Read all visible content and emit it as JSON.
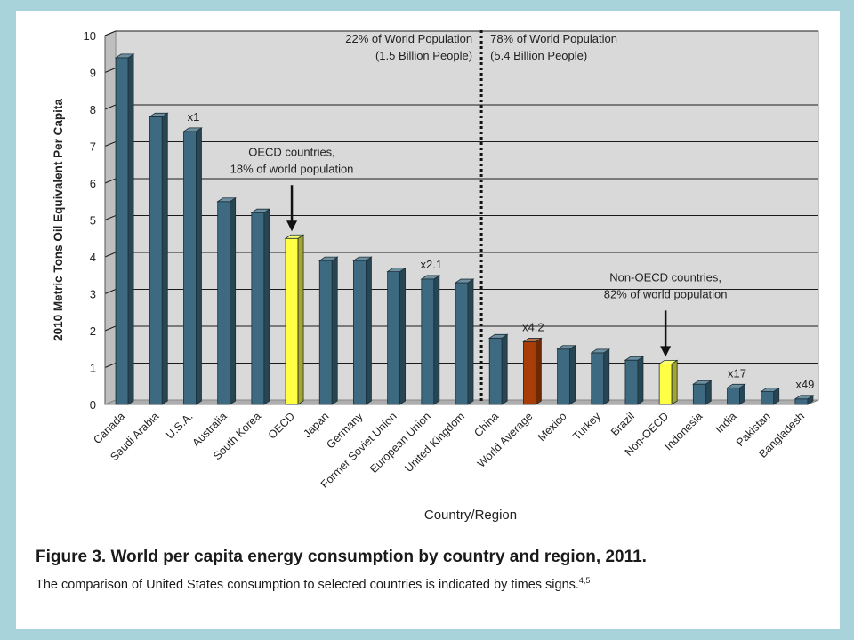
{
  "chart_data": {
    "type": "bar",
    "categories": [
      "Canada",
      "Saudi Arabia",
      "U.S.A.",
      "Australia",
      "South Korea",
      "OECD",
      "Japan",
      "Germany",
      "Former Soviet Union",
      "European Union",
      "United Kingdom",
      "China",
      "World Average",
      "Mexico",
      "Turkey",
      "Brazil",
      "Non-OECD",
      "Indonesia",
      "India",
      "Pakistan",
      "Bangladesh"
    ],
    "values": [
      9.4,
      7.8,
      7.4,
      5.5,
      5.2,
      4.5,
      3.9,
      3.9,
      3.6,
      3.4,
      3.3,
      1.8,
      1.7,
      1.5,
      1.4,
      1.2,
      1.1,
      0.55,
      0.45,
      0.35,
      0.15
    ],
    "bar_colors": [
      "#3d6a80",
      "#3d6a80",
      "#3d6a80",
      "#3d6a80",
      "#3d6a80",
      "#ffff44",
      "#3d6a80",
      "#3d6a80",
      "#3d6a80",
      "#3d6a80",
      "#3d6a80",
      "#3d6a80",
      "#a83d08",
      "#3d6a80",
      "#3d6a80",
      "#3d6a80",
      "#ffff44",
      "#3d6a80",
      "#3d6a80",
      "#3d6a80",
      "#3d6a80"
    ],
    "colors": {
      "default": "#3d6a80",
      "highlight": "#ffff44",
      "average": "#a83d08",
      "plot_background": "#d9d9d9"
    },
    "ylabel": "2010 Metric Tons Oil Equivalent Per Capita",
    "xlabel": "Country/Region",
    "ylim": [
      0,
      10
    ],
    "yticks": [
      0,
      1,
      2,
      3,
      4,
      5,
      6,
      7,
      8,
      9,
      10
    ],
    "grid": true,
    "legend": "none",
    "divider": {
      "after_category": "United Kingdom",
      "left_text": [
        "22% of World Population",
        "(1.5 Billion People)"
      ],
      "right_text": [
        "78% of World Population",
        "(5.4 Billion People)"
      ]
    },
    "multipliers": [
      {
        "category": "U.S.A.",
        "label": "x1"
      },
      {
        "category": "European Union",
        "label": "x2.1"
      },
      {
        "category": "World Average",
        "label": "x4.2"
      },
      {
        "category": "India",
        "label": "x17"
      },
      {
        "category": "Bangladesh",
        "label": "x49"
      }
    ],
    "annotations": [
      {
        "category": "OECD",
        "lines": [
          "OECD countries,",
          "18% of world population"
        ]
      },
      {
        "category": "Non-OECD",
        "lines": [
          "Non-OECD countries,",
          "82% of world population"
        ]
      }
    ]
  },
  "caption": {
    "title": "Figure 3. World per capita energy consumption by country and region, 2011.",
    "note": "The comparison of United States consumption to selected countries is indicated by times signs.",
    "note_refs": "4,5"
  }
}
